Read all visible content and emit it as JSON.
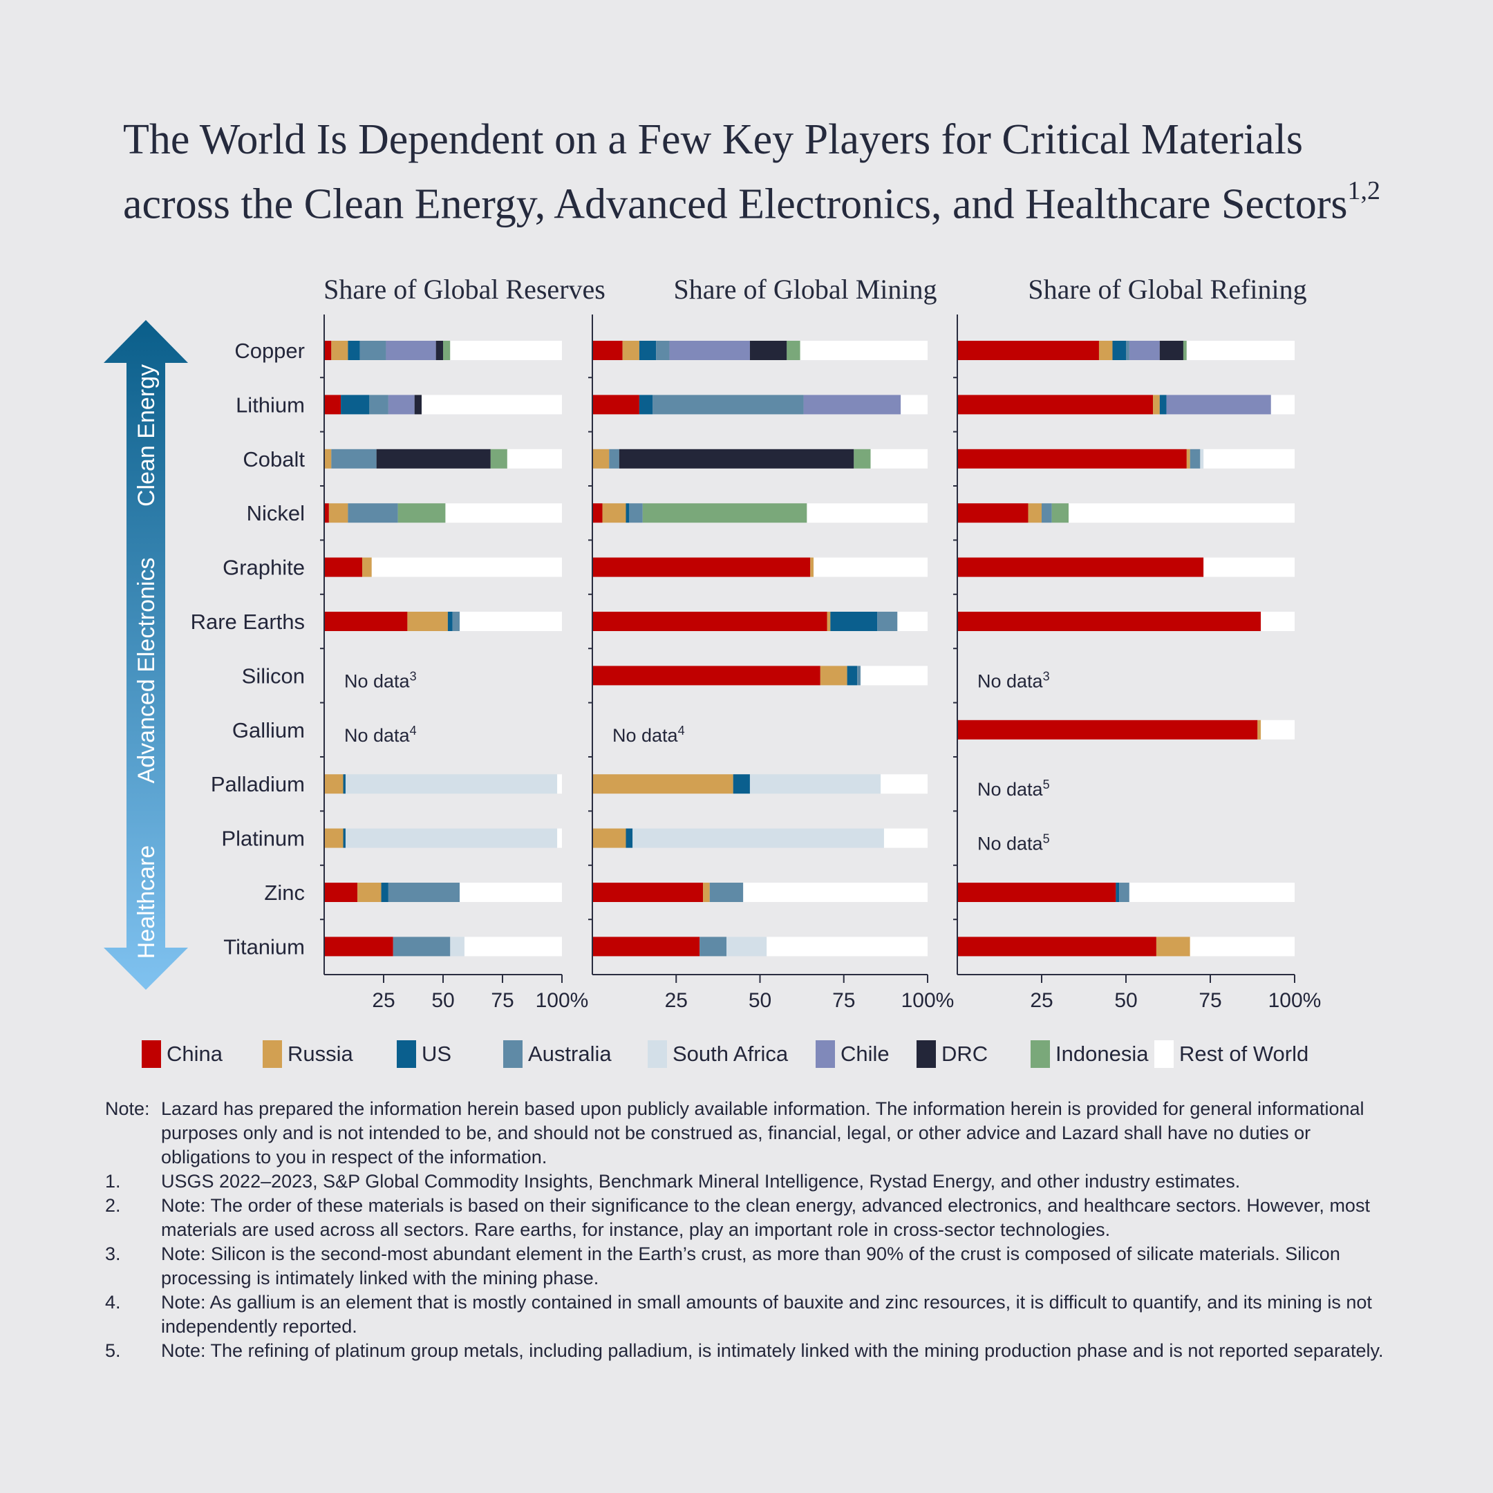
{
  "title": {
    "line1": "The World Is Dependent on a Few Key Players for Critical Materials",
    "line2": "across the Clean Energy, Advanced Electronics, and Healthcare Sectors",
    "superscript": "1,2"
  },
  "sectors": [
    "Clean Energy",
    "Advanced Electronics",
    "Healthcare"
  ],
  "colors": {
    "China": "#c00000",
    "Russia": "#d2a052",
    "US": "#0a5f8e",
    "Australia": "#5f8aa6",
    "South Africa": "#d3dfe8",
    "Chile": "#8089ba",
    "DRC": "#232639",
    "Indonesia": "#7aa87a",
    "Rest of World": "#ffffff",
    "arrow_top": "#0a5e8a",
    "arrow_bottom": "#80c2f0"
  },
  "legend": [
    "China",
    "Russia",
    "US",
    "Australia",
    "South Africa",
    "Chile",
    "DRC",
    "Indonesia",
    "Rest of World"
  ],
  "chart_data": {
    "type": "bar",
    "orientation": "horizontal-stacked",
    "categories": [
      "Copper",
      "Lithium",
      "Cobalt",
      "Nickel",
      "Graphite",
      "Rare Earths",
      "Silicon",
      "Gallium",
      "Palladium",
      "Platinum",
      "Zinc",
      "Titanium"
    ],
    "xlim": [
      0,
      100
    ],
    "tick_labels": [
      "25",
      "50",
      "75",
      "100%"
    ],
    "tick_values": [
      25,
      50,
      75,
      100
    ],
    "series_order": [
      "China",
      "Russia",
      "US",
      "Australia",
      "South Africa",
      "Chile",
      "DRC",
      "Indonesia",
      "Rest of World"
    ],
    "panels": [
      {
        "title": "Share of Global Reserves",
        "rows": [
          {
            "China": 3,
            "Russia": 7,
            "US": 5,
            "Australia": 11,
            "Chile": 21,
            "DRC": 3,
            "Indonesia": 3,
            "Rest of World": 47
          },
          {
            "China": 7,
            "US": 12,
            "Australia": 8,
            "Chile": 11,
            "DRC": 3,
            "Rest of World": 59
          },
          {
            "Russia": 3,
            "Australia": 19,
            "DRC": 48,
            "Indonesia": 7,
            "Rest of World": 23
          },
          {
            "China": 2,
            "Russia": 8,
            "Australia": 21,
            "Indonesia": 20,
            "Rest of World": 49
          },
          {
            "China": 16,
            "Russia": 4,
            "Rest of World": 80
          },
          {
            "China": 35,
            "Russia": 17,
            "US": 2,
            "Australia": 3,
            "Rest of World": 43
          },
          {
            "no_data": "No data",
            "footnote": "3"
          },
          {
            "no_data": "No data",
            "footnote": "4"
          },
          {
            "Russia": 8,
            "US": 1,
            "South Africa": 89,
            "Rest of World": 2
          },
          {
            "Russia": 8,
            "US": 1,
            "South Africa": 89,
            "Rest of World": 2
          },
          {
            "China": 14,
            "Russia": 10,
            "US": 3,
            "Australia": 30,
            "Rest of World": 43
          },
          {
            "China": 29,
            "Australia": 24,
            "South Africa": 6,
            "Rest of World": 41
          }
        ]
      },
      {
        "title": "Share of Global Mining",
        "rows": [
          {
            "China": 9,
            "Russia": 5,
            "US": 5,
            "Australia": 4,
            "Chile": 24,
            "DRC": 11,
            "Indonesia": 4,
            "Rest of World": 38
          },
          {
            "China": 14,
            "US": 4,
            "Australia": 45,
            "Chile": 29,
            "Rest of World": 8
          },
          {
            "Russia": 5,
            "Australia": 3,
            "DRC": 70,
            "Indonesia": 5,
            "Rest of World": 17
          },
          {
            "China": 3,
            "Russia": 7,
            "US": 1,
            "Australia": 4,
            "Indonesia": 49,
            "Rest of World": 36
          },
          {
            "China": 65,
            "Russia": 1,
            "Rest of World": 34
          },
          {
            "China": 70,
            "Russia": 1,
            "US": 14,
            "Australia": 6,
            "Rest of World": 9
          },
          {
            "China": 68,
            "Russia": 8,
            "US": 3,
            "Australia": 1,
            "Rest of World": 20
          },
          {
            "no_data": "No data",
            "footnote": "4"
          },
          {
            "Russia": 42,
            "US": 5,
            "South Africa": 39,
            "Rest of World": 14
          },
          {
            "Russia": 10,
            "US": 2,
            "South Africa": 75,
            "Rest of World": 13
          },
          {
            "China": 33,
            "Russia": 2,
            "Australia": 10,
            "Rest of World": 55
          },
          {
            "China": 32,
            "Australia": 8,
            "South Africa": 12,
            "Rest of World": 48
          }
        ]
      },
      {
        "title": "Share of Global Refining",
        "rows": [
          {
            "China": 42,
            "Russia": 4,
            "US": 4,
            "Australia": 1,
            "Chile": 9,
            "DRC": 7,
            "Indonesia": 1,
            "Rest of World": 32
          },
          {
            "China": 58,
            "Russia": 2,
            "US": 2,
            "Chile": 31,
            "Rest of World": 7
          },
          {
            "China": 68,
            "Russia": 1,
            "Australia": 3,
            "South Africa": 1,
            "Rest of World": 27
          },
          {
            "China": 21,
            "Russia": 4,
            "Australia": 3,
            "Indonesia": 5,
            "Rest of World": 67
          },
          {
            "China": 73,
            "Rest of World": 27
          },
          {
            "China": 90,
            "Rest of World": 10
          },
          {
            "no_data": "No data",
            "footnote": "3"
          },
          {
            "China": 89,
            "Russia": 1,
            "Rest of World": 10
          },
          {
            "no_data": "No data",
            "footnote": "5"
          },
          {
            "no_data": "No data",
            "footnote": "5"
          },
          {
            "China": 47,
            "US": 1,
            "Australia": 3,
            "Rest of World": 49
          },
          {
            "China": 59,
            "Russia": 10,
            "Rest of World": 31
          }
        ]
      }
    ]
  },
  "notes": [
    {
      "label": "Note:",
      "text": "Lazard has prepared the information herein based upon publicly available information. The information herein is provided for general informational purposes only and is not intended to be, and should not be construed as, financial, legal, or other advice and Lazard shall have no duties or obligations to you in respect of the information."
    },
    {
      "label": "1.",
      "text": "USGS 2022–2023, S&P Global Commodity Insights, Benchmark Mineral Intelligence, Rystad Energy, and other industry estimates."
    },
    {
      "label": "2.",
      "text": "Note: The order of these materials is based on their significance to the clean energy, advanced electronics, and healthcare sectors. However, most materials are used across all sectors. Rare earths, for instance, play an important role in cross-sector technologies."
    },
    {
      "label": "3.",
      "text": "Note: Silicon is the second-most abundant element in the Earth’s crust, as more than 90% of the crust is composed of silicate materials. Silicon processing is intimately linked with the mining phase."
    },
    {
      "label": "4.",
      "text": "Note: As gallium is an element that is mostly contained in small amounts of bauxite and zinc resources, it is difficult to quantify, and its mining is not independently reported."
    },
    {
      "label": "5.",
      "text": "Note: The refining of platinum group metals, including palladium, is intimately linked with the mining production phase and is not reported separately."
    }
  ]
}
